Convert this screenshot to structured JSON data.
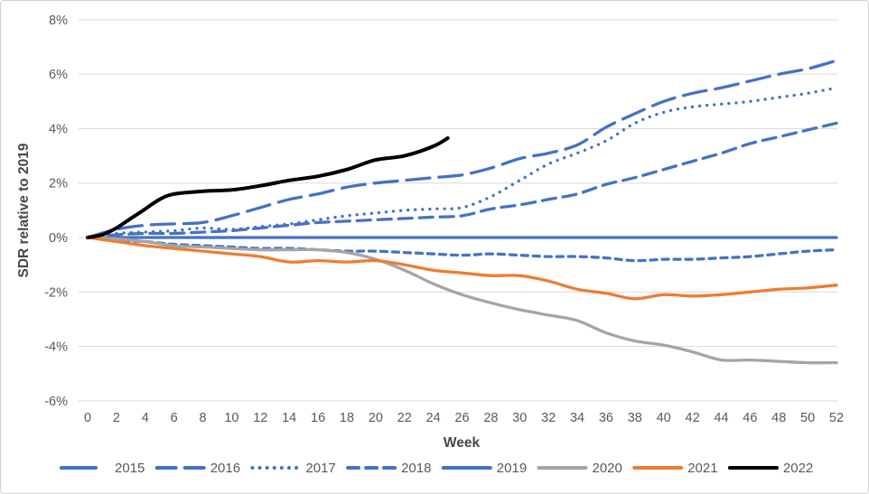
{
  "chart": {
    "background": "#ffffff",
    "border_color": "#d0d0d0",
    "grid_color": "#d9d9d9",
    "tick_text_color": "#595959",
    "axis_title_color": "#474747",
    "series_blue": "#4472C4",
    "series_gray": "#A5A5A5",
    "series_orange": "#ED7D31",
    "series_black": "#000000"
  },
  "chart_data": {
    "type": "line",
    "title": "",
    "xlabel": "Week",
    "ylabel": "SDR relative to 2019",
    "grid": true,
    "legend_position": "bottom",
    "x_axis": {
      "min": 0,
      "max": 52,
      "tick_step": 2,
      "tick_labels": [
        "0",
        "2",
        "4",
        "6",
        "8",
        "10",
        "12",
        "14",
        "16",
        "18",
        "20",
        "22",
        "24",
        "26",
        "28",
        "30",
        "32",
        "34",
        "36",
        "38",
        "40",
        "42",
        "44",
        "46",
        "48",
        "50",
        "52"
      ]
    },
    "y_axis": {
      "min": -6,
      "max": 8,
      "tick_step": 2,
      "unit": "%",
      "tick_labels": [
        "8%",
        "6%",
        "4%",
        "2%",
        "0%",
        "-2%",
        "-4%",
        "-6%"
      ]
    },
    "weeks": [
      0,
      2,
      4,
      6,
      8,
      10,
      12,
      14,
      16,
      18,
      20,
      22,
      24,
      26,
      28,
      30,
      32,
      34,
      36,
      38,
      40,
      42,
      44,
      46,
      48,
      50,
      52
    ],
    "series": [
      {
        "name": "2015",
        "color": "#4472C4",
        "style": "long-dash",
        "y": [
          0,
          0.3,
          0.45,
          0.5,
          0.55,
          0.8,
          1.1,
          1.4,
          1.6,
          1.85,
          2.0,
          2.1,
          2.2,
          2.3,
          2.55,
          2.9,
          3.1,
          3.4,
          4.05,
          4.55,
          5.0,
          5.3,
          5.5,
          5.75,
          6.0,
          6.2,
          6.5
        ]
      },
      {
        "name": "2016",
        "color": "#4472C4",
        "style": "dash",
        "y": [
          0,
          0.1,
          0.15,
          0.15,
          0.2,
          0.25,
          0.35,
          0.45,
          0.55,
          0.6,
          0.65,
          0.7,
          0.75,
          0.8,
          1.05,
          1.2,
          1.4,
          1.6,
          1.95,
          2.2,
          2.5,
          2.8,
          3.1,
          3.45,
          3.7,
          3.95,
          4.2
        ]
      },
      {
        "name": "2017",
        "color": "#4472C4",
        "style": "dot",
        "y": [
          0,
          0.15,
          0.2,
          0.25,
          0.35,
          0.3,
          0.4,
          0.5,
          0.65,
          0.8,
          0.9,
          1.0,
          1.05,
          1.1,
          1.5,
          2.1,
          2.7,
          3.1,
          3.55,
          4.2,
          4.6,
          4.8,
          4.9,
          5.0,
          5.15,
          5.3,
          5.5
        ]
      },
      {
        "name": "2018",
        "color": "#4472C4",
        "style": "short-dash",
        "y": [
          0,
          -0.1,
          -0.15,
          -0.25,
          -0.3,
          -0.35,
          -0.4,
          -0.4,
          -0.45,
          -0.5,
          -0.5,
          -0.55,
          -0.6,
          -0.65,
          -0.6,
          -0.65,
          -0.7,
          -0.7,
          -0.75,
          -0.85,
          -0.8,
          -0.8,
          -0.75,
          -0.7,
          -0.6,
          -0.5,
          -0.45
        ]
      },
      {
        "name": "2019",
        "color": "#4472C4",
        "style": "solid",
        "y": [
          0,
          0,
          0,
          0,
          0,
          0,
          0,
          0,
          0,
          0,
          0,
          0,
          0,
          0,
          0,
          0,
          0,
          0,
          0,
          0,
          0,
          0,
          0,
          0,
          0,
          0,
          0
        ]
      },
      {
        "name": "2020",
        "color": "#A5A5A5",
        "style": "solid",
        "y": [
          0,
          -0.05,
          -0.15,
          -0.3,
          -0.35,
          -0.4,
          -0.45,
          -0.45,
          -0.45,
          -0.55,
          -0.8,
          -1.2,
          -1.7,
          -2.1,
          -2.4,
          -2.65,
          -2.85,
          -3.05,
          -3.5,
          -3.8,
          -3.95,
          -4.2,
          -4.5,
          -4.5,
          -4.55,
          -4.6,
          -4.6
        ]
      },
      {
        "name": "2021",
        "color": "#ED7D31",
        "style": "solid",
        "y": [
          0,
          -0.15,
          -0.3,
          -0.4,
          -0.5,
          -0.6,
          -0.7,
          -0.9,
          -0.85,
          -0.9,
          -0.85,
          -1.0,
          -1.2,
          -1.3,
          -1.4,
          -1.4,
          -1.6,
          -1.9,
          -2.05,
          -2.25,
          -2.1,
          -2.15,
          -2.1,
          -2.0,
          -1.9,
          -1.85,
          -1.75
        ]
      },
      {
        "name": "2022",
        "color": "#000000",
        "style": "solid",
        "x": [
          0,
          1,
          2,
          3,
          4,
          5,
          6,
          8,
          10,
          12,
          14,
          16,
          18,
          20,
          22,
          24,
          25
        ],
        "y": [
          0,
          0.1,
          0.35,
          0.7,
          1.05,
          1.4,
          1.6,
          1.7,
          1.75,
          1.9,
          2.1,
          2.25,
          2.5,
          2.85,
          3.0,
          3.35,
          3.65
        ]
      }
    ]
  }
}
